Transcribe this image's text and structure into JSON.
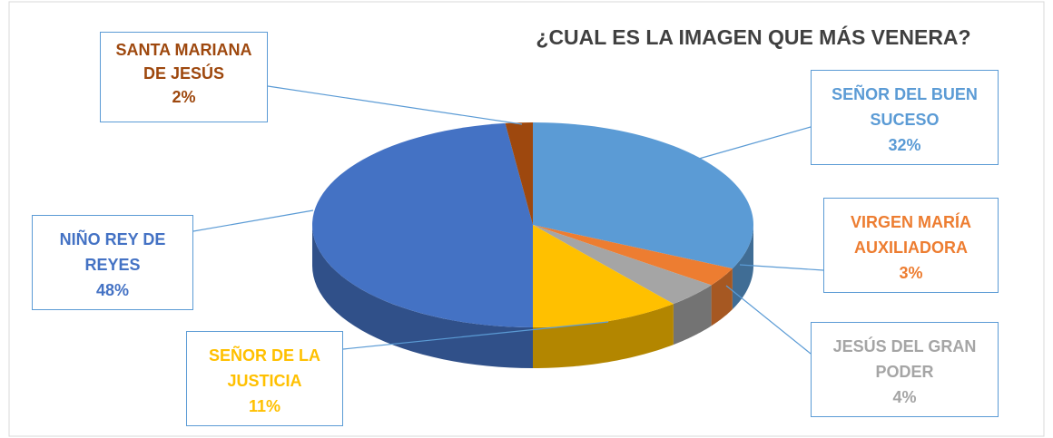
{
  "chart_data": {
    "type": "pie",
    "title": "¿CUAL ES LA IMAGEN QUE MÁS VENERA?",
    "categories": [
      "SEÑOR DEL BUEN SUCESO",
      "VIRGEN MARÍA AUXILIADORA",
      "JESÚS DEL GRAN PODER",
      "SEÑOR DE LA JUSTICIA",
      "NIÑO REY DE REYES",
      "SANTA MARIANA DE JESÚS"
    ],
    "values": [
      32,
      3,
      4,
      11,
      48,
      2
    ],
    "value_labels": [
      "32%",
      "3%",
      "4%",
      "11%",
      "48%",
      "2%"
    ],
    "colors": [
      "#5b9bd5",
      "#ed7d31",
      "#a5a5a5",
      "#ffc000",
      "#4472c4",
      "#9e480e"
    ]
  }
}
